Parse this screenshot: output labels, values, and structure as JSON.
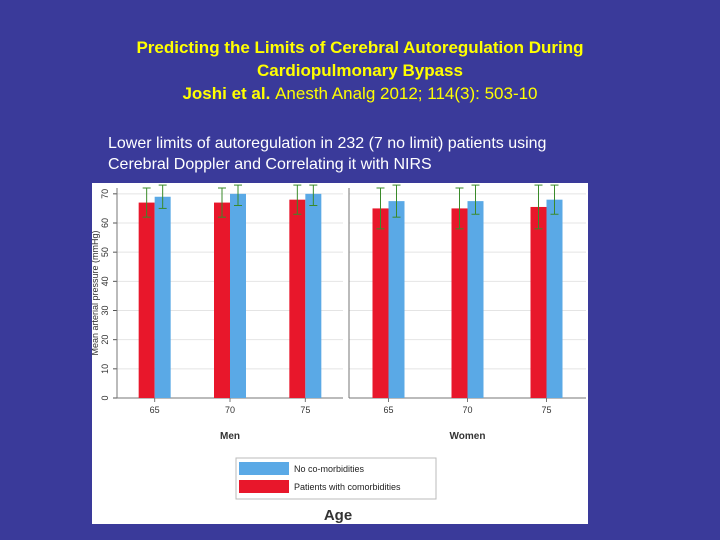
{
  "slide": {
    "title_line1": "Predicting the Limits of Cerebral Autoregulation During",
    "title_line2": "Cardiopulmonary Bypass",
    "citation_authors": "Joshi et al.",
    "citation_ref": "Anesth Analg 2012; 114(3): 503-10",
    "subtitle_line1": "Lower limits of autoregulation in 232 (7 no limit) patients using",
    "subtitle_line2": "Cerebral Doppler and Correlating it with NIRS"
  },
  "colors": {
    "background": "#3a3a9a",
    "title": "#ffff00",
    "no_comorbid": "#5aa9e6",
    "comorbid": "#e8172b",
    "error_bar": "#3a8a2a"
  },
  "chart_data": {
    "type": "bar",
    "title": "",
    "xlabel": "Age",
    "ylabel": "Mean arterial pressure (mmHg)",
    "ylim": [
      0,
      72
    ],
    "yticks": [
      "0",
      "10",
      "20",
      "30",
      "40",
      "50",
      "60",
      "70"
    ],
    "grid": true,
    "legend_position": "bottom-center",
    "legend": [
      "No co-morbidities",
      "Patients with comorbidities"
    ],
    "panels": [
      {
        "name": "Men",
        "categories": [
          "65",
          "70",
          "75"
        ],
        "series": [
          {
            "name": "Patients with comorbidities",
            "values": [
              67,
              67,
              68
            ],
            "error_low": [
              62,
              62,
              63
            ],
            "error_high": [
              72,
              72,
              73
            ]
          },
          {
            "name": "No co-morbidities",
            "values": [
              69,
              70,
              70
            ],
            "error_low": [
              65,
              66,
              66
            ],
            "error_high": [
              73,
              73,
              73
            ]
          }
        ]
      },
      {
        "name": "Women",
        "categories": [
          "65",
          "70",
          "75"
        ],
        "series": [
          {
            "name": "Patients with comorbidities",
            "values": [
              65,
              65,
              65.5
            ],
            "error_low": [
              58,
              58,
              58
            ],
            "error_high": [
              72,
              72,
              73
            ]
          },
          {
            "name": "No co-morbidities",
            "values": [
              67.5,
              67.5,
              68
            ],
            "error_low": [
              62,
              63,
              63
            ],
            "error_high": [
              73,
              73,
              73
            ]
          }
        ]
      }
    ]
  }
}
